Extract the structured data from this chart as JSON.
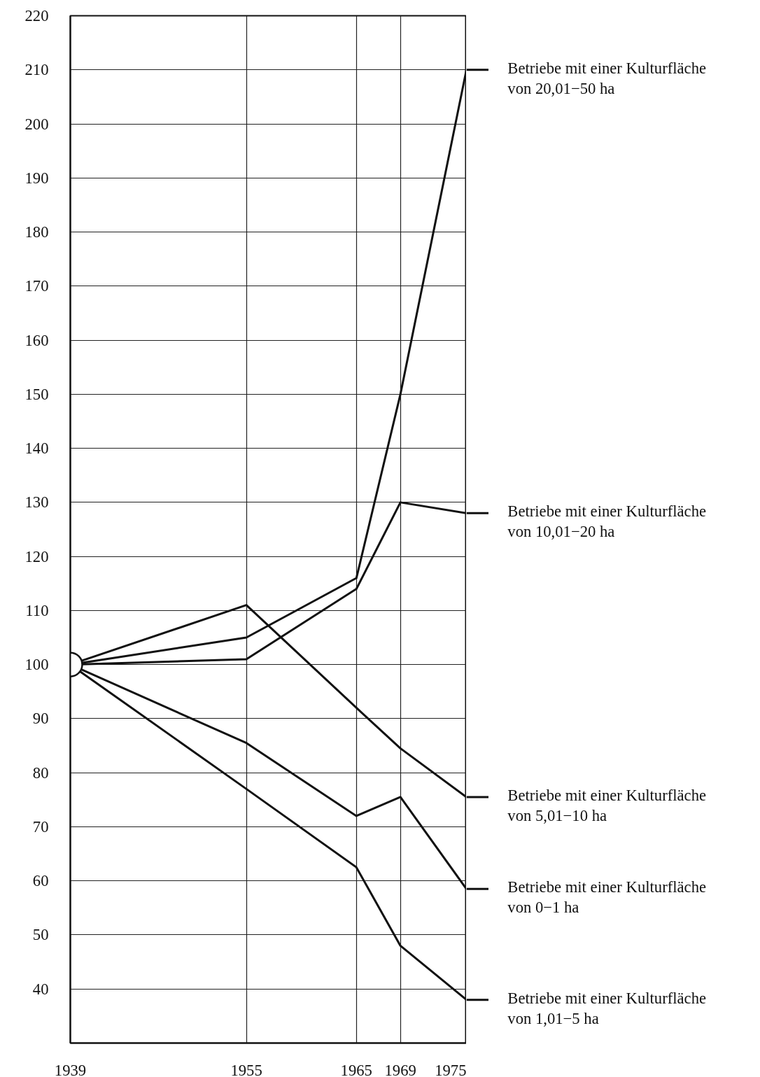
{
  "chart_data": {
    "type": "line",
    "x": [
      1939,
      1955,
      1965,
      1969,
      1975
    ],
    "series": [
      {
        "name": "Betriebe mit einer Kulturfläche\nvon 20,01−50 ha",
        "color": "#111111",
        "values": [
          100,
          105,
          116,
          150,
          210
        ]
      },
      {
        "name": "Betriebe mit einer Kulturfläche\nvon 10,01−20 ha",
        "color": "#111111",
        "values": [
          100,
          101,
          114,
          130,
          128
        ]
      },
      {
        "name": "Betriebe mit einer Kulturfläche\nvon 5,01−10 ha",
        "color": "#111111",
        "values": [
          100,
          111,
          92,
          84.5,
          75.5
        ]
      },
      {
        "name": "Betriebe mit einer Kulturfläche\nvon 0−1 ha",
        "color": "#111111",
        "values": [
          100,
          85.5,
          72,
          75.5,
          58.5
        ]
      },
      {
        "name": "Betriebe mit einer Kulturfläche\nvon 1,01−5 ha",
        "color": "#111111",
        "values": [
          100,
          77,
          62.5,
          48,
          38
        ]
      },
      {
        "type": "scatter",
        "marker": "circle",
        "color": "#ffffff",
        "x": [
          1939
        ],
        "values": [
          100
        ]
      }
    ],
    "xlim": [
      1939,
      1975
    ],
    "xticks": [
      1939,
      1955,
      1965,
      1969,
      1975
    ],
    "ylim": [
      30,
      220
    ],
    "yticks": [
      40,
      50,
      60,
      70,
      80,
      90,
      100,
      110,
      120,
      130,
      140,
      150,
      160,
      170,
      180,
      190,
      200,
      210,
      220
    ],
    "grid": true,
    "legend": "right",
    "marker": "none",
    "line_style": "solid"
  }
}
